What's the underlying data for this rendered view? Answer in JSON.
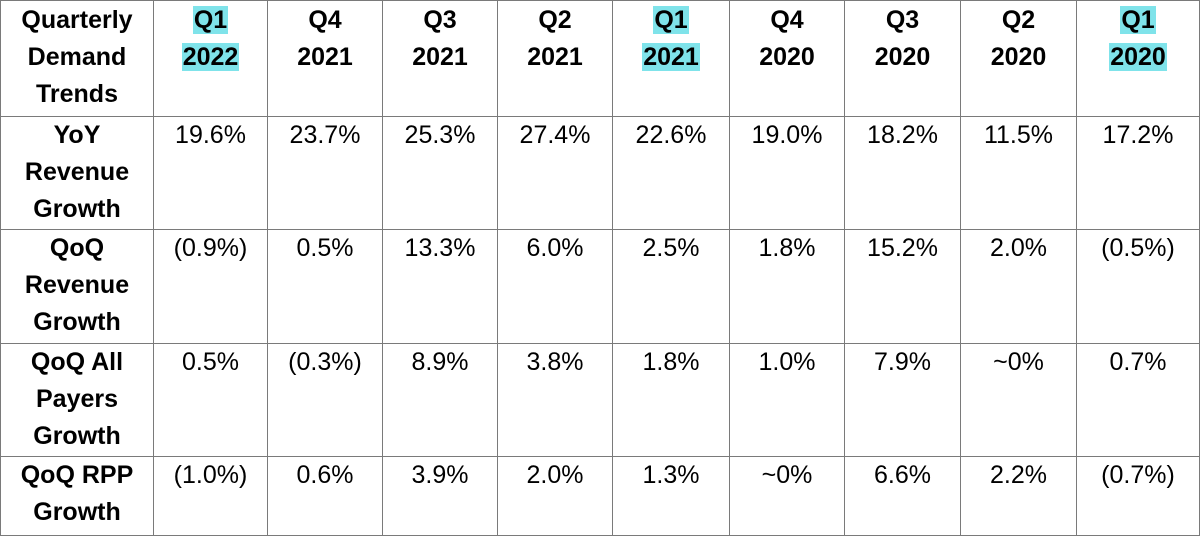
{
  "table": {
    "corner_lines": [
      "Quarterly",
      "Demand",
      "Trends"
    ],
    "columns": [
      {
        "quarter": "Q1",
        "year": "2022",
        "highlight": true
      },
      {
        "quarter": "Q4",
        "year": "2021",
        "highlight": false
      },
      {
        "quarter": "Q3",
        "year": "2021",
        "highlight": false
      },
      {
        "quarter": "Q2",
        "year": "2021",
        "highlight": false
      },
      {
        "quarter": "Q1",
        "year": "2021",
        "highlight": true
      },
      {
        "quarter": "Q4",
        "year": "2020",
        "highlight": false
      },
      {
        "quarter": "Q3",
        "year": "2020",
        "highlight": false
      },
      {
        "quarter": "Q2",
        "year": "2020",
        "highlight": false
      },
      {
        "quarter": "Q1",
        "year": "2020",
        "highlight": true
      }
    ],
    "rows": [
      {
        "label_lines": [
          "YoY",
          "Revenue",
          "Growth"
        ],
        "values": [
          "19.6%",
          "23.7%",
          "25.3%",
          "27.4%",
          "22.6%",
          "19.0%",
          "18.2%",
          "11.5%",
          "17.2%"
        ]
      },
      {
        "label_lines": [
          "QoQ",
          "Revenue",
          "Growth"
        ],
        "values": [
          "(0.9%)",
          "0.5%",
          "13.3%",
          "6.0%",
          "2.5%",
          "1.8%",
          "15.2%",
          "2.0%",
          "(0.5%)"
        ]
      },
      {
        "label_lines": [
          "QoQ All",
          "Payers",
          "Growth"
        ],
        "values": [
          "0.5%",
          "(0.3%)",
          "8.9%",
          "3.8%",
          "1.8%",
          "1.0%",
          "7.9%",
          "~0%",
          "0.7%"
        ]
      },
      {
        "label_lines": [
          "QoQ RPP",
          "Growth"
        ],
        "values": [
          "(1.0%)",
          "0.6%",
          "3.9%",
          "2.0%",
          "1.3%",
          "~0%",
          "6.6%",
          "2.2%",
          "(0.7%)"
        ]
      }
    ],
    "highlight_color": "#7fe3ea",
    "border_color": "#7a7a7a"
  }
}
